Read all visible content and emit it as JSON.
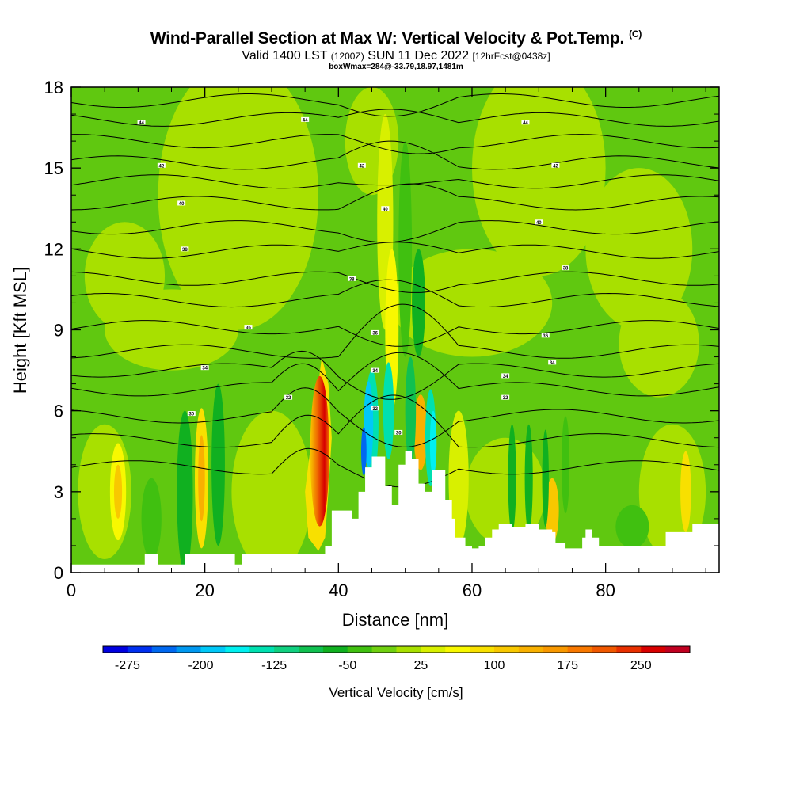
{
  "header": {
    "title": "Wind-Parallel Section at Max W: Vertical Velocity & Pot.Temp.",
    "copyright_mark": "(C)",
    "valid_prefix": "Valid 1400 LST",
    "valid_utc": "(1200Z)",
    "valid_date": "SUN 11 Dec 2022",
    "forecast": "[12hrFcst@0438z]",
    "box_info": "boxWmax=284@-33.79,18.97,1481m"
  },
  "chart_data": {
    "type": "heatmap",
    "xlabel": "Distance [nm]",
    "ylabel": "Height [Kft MSL]",
    "xlim": [
      0,
      97
    ],
    "ylim": [
      0,
      18
    ],
    "x_ticks": [
      0,
      20,
      40,
      60,
      80
    ],
    "y_ticks": [
      0,
      3,
      6,
      9,
      12,
      15,
      18
    ],
    "colorbar": {
      "title": "Vertical Velocity [cm/s]",
      "tick_labels": [
        "-275",
        "-200",
        "-125",
        "-50",
        "25",
        "100",
        "175",
        "250"
      ],
      "tick_values": [
        -275,
        -200,
        -125,
        -50,
        25,
        100,
        175,
        250
      ],
      "range": [
        -300,
        300
      ],
      "colors": [
        "#0000e0",
        "#0030f0",
        "#0068f0",
        "#0098f0",
        "#00c8f8",
        "#00f0f0",
        "#00e0b0",
        "#10d080",
        "#10c050",
        "#10b020",
        "#40c010",
        "#70d010",
        "#a8e000",
        "#d8f000",
        "#f8f800",
        "#f8e000",
        "#f8c800",
        "#f8b000",
        "#f89800",
        "#f87800",
        "#f05800",
        "#e83000",
        "#d80000",
        "#c00020"
      ]
    },
    "terrain_profile": [
      [
        0,
        0.3
      ],
      [
        5,
        0.3
      ],
      [
        10,
        0.3
      ],
      [
        11,
        0.7
      ],
      [
        13,
        0.3
      ],
      [
        16,
        0.3
      ],
      [
        17,
        0.7
      ],
      [
        24,
        0.7
      ],
      [
        24.5,
        0.3
      ],
      [
        25.5,
        0.7
      ],
      [
        37,
        0.7
      ],
      [
        38,
        1.0
      ],
      [
        39,
        2.3
      ],
      [
        41,
        2.3
      ],
      [
        42,
        2.0
      ],
      [
        43,
        3.0
      ],
      [
        44,
        3.9
      ],
      [
        45,
        4.3
      ],
      [
        46,
        4.3
      ],
      [
        47,
        3.2
      ],
      [
        48,
        2.5
      ],
      [
        49,
        4.0
      ],
      [
        50,
        4.5
      ],
      [
        51,
        4.2
      ],
      [
        52,
        3.3
      ],
      [
        53,
        3.0
      ],
      [
        54,
        3.8
      ],
      [
        55,
        3.8
      ],
      [
        56,
        2.7
      ],
      [
        57,
        2.0
      ],
      [
        57.5,
        1.3
      ],
      [
        58,
        1.3
      ],
      [
        59,
        1.0
      ],
      [
        60,
        0.9
      ],
      [
        61,
        1.0
      ],
      [
        62,
        1.3
      ],
      [
        63,
        1.6
      ],
      [
        64,
        1.8
      ],
      [
        66,
        1.7
      ],
      [
        68,
        1.8
      ],
      [
        70,
        1.6
      ],
      [
        72,
        1.5
      ],
      [
        72.5,
        1.1
      ],
      [
        73,
        1.1
      ],
      [
        74,
        0.9
      ],
      [
        76,
        0.9
      ],
      [
        76.5,
        1.3
      ],
      [
        77,
        1.6
      ],
      [
        78,
        1.3
      ],
      [
        79,
        1.0
      ],
      [
        84,
        1.0
      ],
      [
        88,
        1.0
      ],
      [
        89,
        1.5
      ],
      [
        93,
        1.8
      ],
      [
        97,
        1.9
      ]
    ],
    "isentrope_labels": [
      {
        "x": 10.5,
        "y": 16.7,
        "t": "44"
      },
      {
        "x": 35,
        "y": 16.8,
        "t": "44"
      },
      {
        "x": 68,
        "y": 16.7,
        "t": "44"
      },
      {
        "x": 13.5,
        "y": 15.1,
        "t": "42"
      },
      {
        "x": 43.5,
        "y": 15.1,
        "t": "42"
      },
      {
        "x": 72.5,
        "y": 15.1,
        "t": "42"
      },
      {
        "x": 16.5,
        "y": 13.7,
        "t": "40"
      },
      {
        "x": 47,
        "y": 13.5,
        "t": "40"
      },
      {
        "x": 70,
        "y": 13.0,
        "t": "40"
      },
      {
        "x": 17,
        "y": 12.0,
        "t": "38"
      },
      {
        "x": 42,
        "y": 10.9,
        "t": "38"
      },
      {
        "x": 74,
        "y": 11.3,
        "t": "38"
      },
      {
        "x": 26.5,
        "y": 9.1,
        "t": "36"
      },
      {
        "x": 45.5,
        "y": 8.9,
        "t": "36"
      },
      {
        "x": 71,
        "y": 8.8,
        "t": "36"
      },
      {
        "x": 20,
        "y": 7.6,
        "t": "34"
      },
      {
        "x": 45.5,
        "y": 7.5,
        "t": "34"
      },
      {
        "x": 65,
        "y": 7.3,
        "t": "34"
      },
      {
        "x": 72,
        "y": 7.8,
        "t": "34"
      },
      {
        "x": 32.5,
        "y": 6.5,
        "t": "32"
      },
      {
        "x": 45.5,
        "y": 6.1,
        "t": "32"
      },
      {
        "x": 65,
        "y": 6.5,
        "t": "32"
      },
      {
        "x": 18,
        "y": 5.9,
        "t": "30"
      },
      {
        "x": 49,
        "y": 5.2,
        "t": "30"
      }
    ]
  }
}
